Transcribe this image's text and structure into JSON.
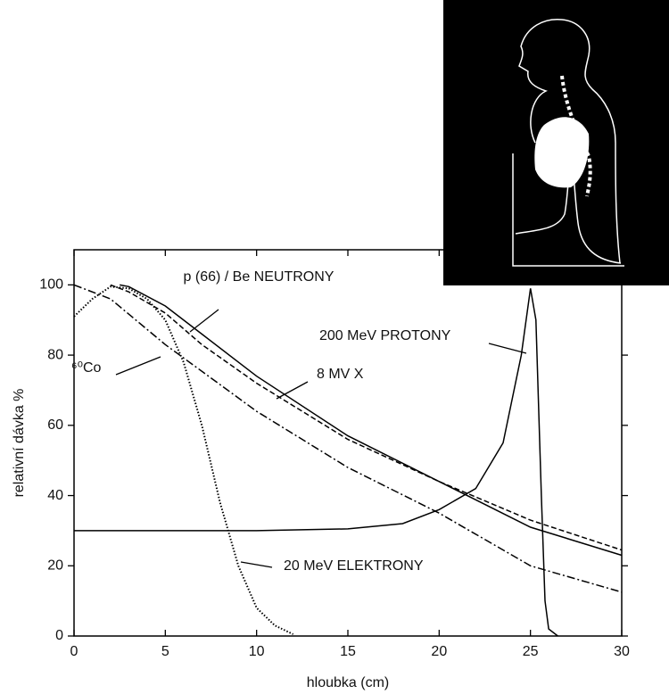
{
  "chart_data": {
    "type": "line",
    "xlabel": "hloubka (cm)",
    "ylabel": "relativní dávka %",
    "xlim": [
      0,
      30
    ],
    "ylim": [
      0,
      110
    ],
    "xticks": [
      0,
      5,
      10,
      15,
      20,
      25,
      30
    ],
    "yticks": [
      0,
      20,
      40,
      60,
      80,
      100
    ],
    "series": [
      {
        "name": "p (66) / Be NEUTRONY",
        "color": "#000000",
        "style": "solid",
        "x": [
          2.5,
          3,
          5,
          7,
          10,
          15,
          20,
          25,
          30
        ],
        "values": [
          100,
          99.5,
          94,
          86,
          74,
          57,
          44,
          31,
          23
        ]
      },
      {
        "name": "8 MV X",
        "color": "#000000",
        "style": "dashed",
        "x": [
          2,
          3,
          5,
          7,
          10,
          15,
          20,
          25,
          30
        ],
        "values": [
          100,
          98,
          92,
          83,
          72,
          56,
          44,
          33,
          24.5
        ]
      },
      {
        "name": "⁶⁰Co",
        "color": "#000000",
        "style": "dashdot",
        "x": [
          0,
          2,
          5,
          10,
          15,
          20,
          25,
          30
        ],
        "values": [
          100,
          96,
          83,
          64,
          48,
          35,
          20,
          12.5
        ]
      },
      {
        "name": "20 MeV ELEKTRONY",
        "color": "#000000",
        "style": "dotted",
        "x": [
          0,
          1,
          2,
          3,
          4,
          5,
          6,
          7,
          8,
          9,
          10,
          11,
          12
        ],
        "values": [
          91,
          96,
          99.5,
          99,
          96,
          90,
          78,
          60,
          38,
          20,
          8,
          3,
          0.5
        ]
      },
      {
        "name": "200 MeV PROTONY",
        "color": "#000000",
        "style": "solid",
        "x": [
          0,
          5,
          10,
          15,
          18,
          20,
          22,
          23.5,
          24.5,
          25,
          25.3,
          25.6,
          25.8,
          26,
          26.5
        ],
        "values": [
          30,
          30,
          30,
          30.5,
          32,
          36,
          42,
          55,
          80,
          99,
          90,
          40,
          10,
          2,
          0
        ]
      }
    ]
  }
}
